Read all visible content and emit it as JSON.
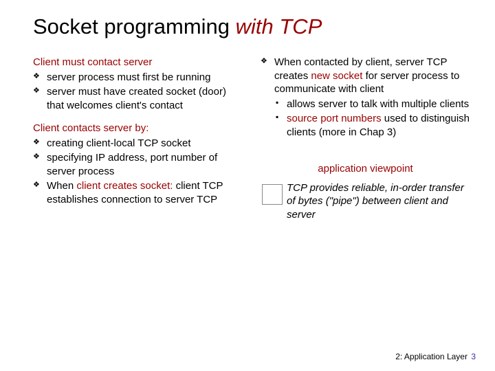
{
  "title": {
    "part1": "Socket programming",
    "part2": " with TCP"
  },
  "left": {
    "head1": "Client must contact server",
    "b1": "server process must first be running",
    "b2": "server must have created socket (door) that welcomes client's contact",
    "head2": "Client contacts server by:",
    "b3": "creating client-local TCP socket",
    "b4": "specifying IP address, port number of server process",
    "b5a": "When ",
    "b5b": "client creates socket:",
    "b5c": " client TCP establishes connection to server TCP"
  },
  "right": {
    "r1a": "When contacted by client, server TCP creates ",
    "r1b": "new socket",
    "r1c": " for server process to communicate with client",
    "s1": "allows server to talk with multiple clients",
    "s2a": "source port numbers",
    "s2b": " used to distinguish clients ",
    "s2c": "(more in Chap 3)",
    "viewpoint": "application viewpoint",
    "pipe": "TCP provides reliable, in-order transfer of bytes (\"pipe\") between client and server"
  },
  "footer": {
    "label": "2: Application Layer",
    "page": "3"
  }
}
